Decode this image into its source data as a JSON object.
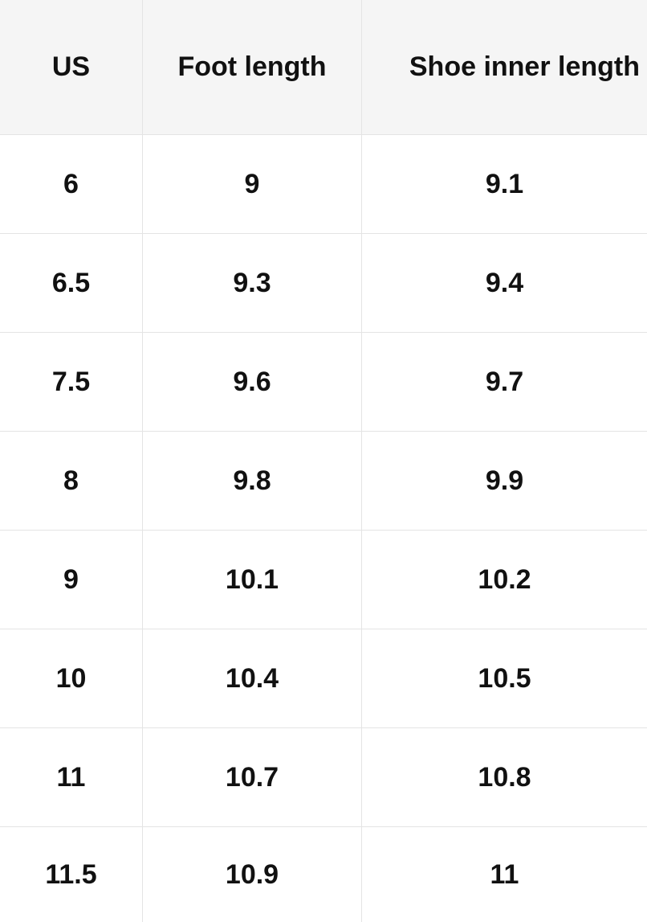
{
  "table": {
    "header": [
      "US",
      "Foot length",
      "Shoe inner length"
    ],
    "rows": [
      [
        "6",
        "9",
        "9.1"
      ],
      [
        "6.5",
        "9.3",
        "9.4"
      ],
      [
        "7.5",
        "9.6",
        "9.7"
      ],
      [
        "8",
        "9.8",
        "9.9"
      ],
      [
        "9",
        "10.1",
        "10.2"
      ],
      [
        "10",
        "10.4",
        "10.5"
      ],
      [
        "11",
        "10.7",
        "10.8"
      ],
      [
        "11.5",
        "10.9",
        "11"
      ]
    ]
  }
}
